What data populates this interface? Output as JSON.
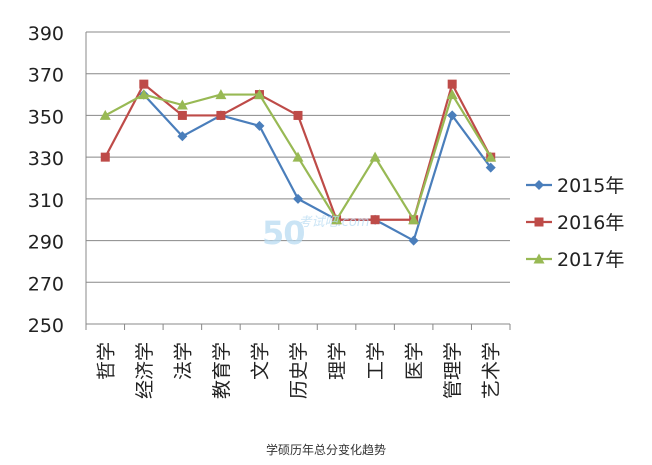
{
  "watermark": {
    "digits": "50",
    "text": "考试吧",
    "domain": ".com"
  },
  "caption": "学硕历年总分变化趋势",
  "chart_data": {
    "type": "line",
    "categories": [
      "哲学",
      "经济学",
      "法学",
      "教育学",
      "文学",
      "历史学",
      "理学",
      "工学",
      "医学",
      "管理学",
      "艺术学"
    ],
    "ylim": [
      250,
      390
    ],
    "yticks": [
      250,
      270,
      290,
      310,
      330,
      350,
      370,
      390
    ],
    "grid": "horizontal",
    "legend_position": "right",
    "series": [
      {
        "name": "2015年",
        "color": "#4a7ebb",
        "marker": "diamond",
        "values": [
          null,
          360,
          340,
          350,
          345,
          310,
          300,
          300,
          290,
          350,
          325
        ]
      },
      {
        "name": "2016年",
        "color": "#be4b48",
        "marker": "square",
        "values": [
          330,
          365,
          350,
          350,
          360,
          350,
          300,
          300,
          300,
          365,
          330
        ]
      },
      {
        "name": "2017年",
        "color": "#98b954",
        "marker": "triangle",
        "values": [
          350,
          360,
          355,
          360,
          360,
          330,
          300,
          330,
          300,
          360,
          330
        ]
      }
    ]
  }
}
